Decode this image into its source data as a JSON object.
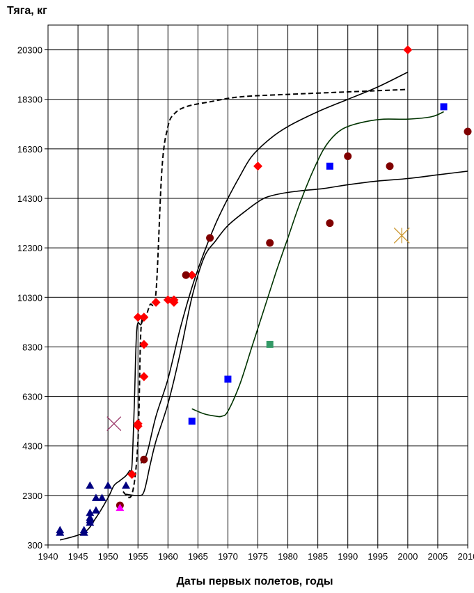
{
  "chart_data": {
    "type": "scatter",
    "title": "",
    "ylabel": "Тяга, кг",
    "xlabel": "Даты первых полетов, годы",
    "xlim": [
      1940,
      2010
    ],
    "ylim": [
      300,
      21300
    ],
    "x_ticks": [
      "1940",
      "1945",
      "1950",
      "1955",
      "1960",
      "1965",
      "1970",
      "1975",
      "1980",
      "1985",
      "1990",
      "1995",
      "2000",
      "2005",
      "2010"
    ],
    "y_ticks": [
      "300",
      "2300",
      "4300",
      "6300",
      "8300",
      "10300",
      "12300",
      "14300",
      "16300",
      "18300",
      "20300"
    ],
    "grid": true,
    "legend": "none",
    "colors": {
      "red_diamond": "#ff0000",
      "dark_red_circle": "#800000",
      "blue_square": "#0000ff",
      "navy_triangle": "#000080",
      "green_square": "#339966",
      "magenta_triangle": "#ff00ff",
      "purple_cross": "#993366",
      "orange_star": "#cc9933",
      "green_line": "#003300",
      "black_line": "#000000"
    },
    "series": [
      {
        "marker": "diamond",
        "color": "#ff0000",
        "points": [
          [
            1954,
            3150
          ],
          [
            1955,
            5100
          ],
          [
            1955,
            5200
          ],
          [
            1955,
            9500
          ],
          [
            1956,
            9500
          ],
          [
            1956,
            8400
          ],
          [
            1956,
            7100
          ],
          [
            1958,
            10100
          ],
          [
            1960,
            10200
          ],
          [
            1961,
            10100
          ],
          [
            1961,
            10200
          ],
          [
            1964,
            11200
          ],
          [
            1975,
            15600
          ],
          [
            2000,
            20300
          ]
        ]
      },
      {
        "marker": "circle",
        "color": "#800000",
        "points": [
          [
            1952,
            1900
          ],
          [
            1956,
            3750
          ],
          [
            1963,
            11200
          ],
          [
            1967,
            12700
          ],
          [
            1977,
            12500
          ],
          [
            1987,
            13300
          ],
          [
            1990,
            16000
          ],
          [
            1997,
            15600
          ],
          [
            2010,
            17000
          ]
        ]
      },
      {
        "marker": "square",
        "color": "#0000ff",
        "points": [
          [
            1964,
            5300
          ],
          [
            1970,
            7000
          ],
          [
            1987,
            15600
          ],
          [
            2006,
            18000
          ]
        ]
      },
      {
        "marker": "triangle",
        "color": "#000080",
        "points": [
          [
            1942,
            800
          ],
          [
            1942,
            900
          ],
          [
            1946,
            800
          ],
          [
            1946,
            900
          ],
          [
            1947,
            1200
          ],
          [
            1947,
            1300
          ],
          [
            1947,
            1400
          ],
          [
            1947,
            1600
          ],
          [
            1947,
            2700
          ],
          [
            1948,
            1700
          ],
          [
            1948,
            2200
          ],
          [
            1949,
            2200
          ],
          [
            1950,
            2700
          ],
          [
            1953,
            2700
          ]
        ]
      },
      {
        "marker": "square",
        "color": "#339966",
        "points": [
          [
            1977,
            8400
          ]
        ]
      },
      {
        "marker": "triangle",
        "color": "#ff00ff",
        "points": [
          [
            1952,
            1800
          ]
        ]
      },
      {
        "marker": "x",
        "color": "#993366",
        "points": [
          [
            1951,
            5200
          ]
        ]
      },
      {
        "marker": "star",
        "color": "#cc9933",
        "points": [
          [
            1999,
            12800
          ]
        ]
      }
    ],
    "lines": [
      {
        "style": "dashed",
        "color": "#000000",
        "points": [
          [
            1952.5,
            2450
          ],
          [
            1954,
            2350
          ],
          [
            1955,
            4500
          ],
          [
            1955.5,
            9000
          ],
          [
            1956.3,
            9500
          ],
          [
            1957,
            10000
          ],
          [
            1958,
            10500
          ],
          [
            1959,
            15500
          ],
          [
            1960,
            17200
          ],
          [
            1961,
            17700
          ],
          [
            1963,
            18000
          ],
          [
            1967,
            18200
          ],
          [
            1972,
            18400
          ],
          [
            1980,
            18500
          ],
          [
            1990,
            18600
          ],
          [
            2000,
            18700
          ]
        ]
      },
      {
        "style": "solid",
        "color": "#000000",
        "points": [
          [
            1942,
            500
          ],
          [
            1946,
            800
          ],
          [
            1948,
            1400
          ],
          [
            1950,
            2200
          ],
          [
            1951,
            2700
          ],
          [
            1952,
            2900
          ],
          [
            1953,
            3100
          ],
          [
            1953.6,
            3300
          ],
          [
            1954,
            3500
          ],
          [
            1954.4,
            6000
          ],
          [
            1954.8,
            9000
          ],
          [
            1955.5,
            9200
          ],
          [
            1956,
            9500
          ]
        ]
      },
      {
        "style": "solid",
        "color": "#000000",
        "points": [
          [
            1953,
            2350
          ],
          [
            1955,
            2300
          ],
          [
            1956,
            2450
          ],
          [
            1957,
            3500
          ],
          [
            1958,
            4500
          ],
          [
            1960,
            6000
          ],
          [
            1962,
            8000
          ],
          [
            1964,
            10300
          ],
          [
            1966,
            11900
          ],
          [
            1968,
            12600
          ],
          [
            1970,
            13200
          ],
          [
            1973,
            13800
          ],
          [
            1976,
            14300
          ],
          [
            1979,
            14500
          ],
          [
            1982,
            14600
          ],
          [
            1986,
            14700
          ],
          [
            1990,
            14850
          ],
          [
            1995,
            15000
          ],
          [
            2000,
            15100
          ],
          [
            2005,
            15250
          ],
          [
            2010,
            15400
          ]
        ]
      },
      {
        "style": "solid",
        "color": "#000000",
        "points": [
          [
            1955.5,
            3600
          ],
          [
            1956.5,
            4000
          ],
          [
            1958,
            5500
          ],
          [
            1960,
            7000
          ],
          [
            1962,
            9000
          ],
          [
            1964,
            10700
          ],
          [
            1966,
            12100
          ],
          [
            1968,
            13300
          ],
          [
            1970,
            14300
          ],
          [
            1972,
            15200
          ],
          [
            1974,
            16000
          ],
          [
            1977,
            16700
          ],
          [
            1980,
            17200
          ],
          [
            1985,
            17800
          ],
          [
            1990,
            18300
          ],
          [
            1995,
            18800
          ],
          [
            2000,
            19400
          ]
        ]
      },
      {
        "style": "solid",
        "color": "#003300",
        "points": [
          [
            1964,
            5800
          ],
          [
            1966,
            5600
          ],
          [
            1968,
            5500
          ],
          [
            1969,
            5500
          ],
          [
            1970,
            5700
          ],
          [
            1972,
            6800
          ],
          [
            1974,
            8300
          ],
          [
            1976,
            9800
          ],
          [
            1978,
            11300
          ],
          [
            1980,
            12700
          ],
          [
            1982,
            14100
          ],
          [
            1984,
            15300
          ],
          [
            1986,
            16300
          ],
          [
            1988,
            16900
          ],
          [
            1990,
            17200
          ],
          [
            1993,
            17400
          ],
          [
            1996,
            17500
          ],
          [
            2000,
            17500
          ],
          [
            2004,
            17600
          ],
          [
            2006,
            17800
          ]
        ]
      }
    ]
  }
}
